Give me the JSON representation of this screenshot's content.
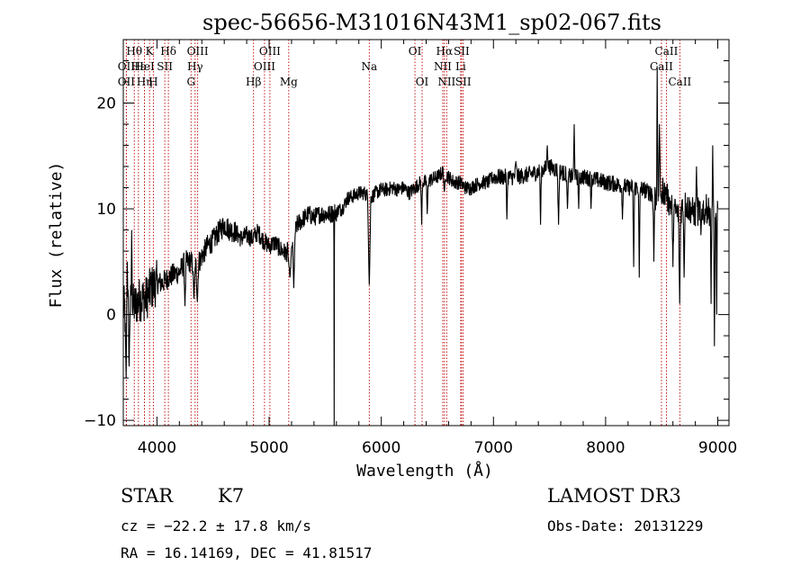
{
  "chart_data": {
    "type": "line",
    "title": "spec-56656-M31016N43M1_sp02-067.fits",
    "xlabel": "Wavelength (Å)",
    "ylabel": "Flux (relative)",
    "xlim": [
      3700,
      9100
    ],
    "ylim": [
      -10.5,
      26
    ],
    "xticks": [
      4000,
      5000,
      6000,
      7000,
      8000,
      9000
    ],
    "yticks": [
      -10,
      0,
      10,
      20
    ],
    "tick_labels_x": [
      "4000",
      "5000",
      "6000",
      "7000",
      "8000",
      "9000"
    ],
    "tick_labels_y": [
      "−10",
      "0",
      "10",
      "20"
    ],
    "series": [
      {
        "name": "flux",
        "anchors": [
          [
            3700,
            0.5
          ],
          [
            3750,
            1.0
          ],
          [
            3800,
            0.8
          ],
          [
            3850,
            1.5
          ],
          [
            3900,
            1.5
          ],
          [
            3950,
            2.5
          ],
          [
            4000,
            3.0
          ],
          [
            4050,
            3.0
          ],
          [
            4100,
            3.5
          ],
          [
            4150,
            3.8
          ],
          [
            4200,
            4.0
          ],
          [
            4250,
            5.0
          ],
          [
            4300,
            5.0
          ],
          [
            4350,
            4.5
          ],
          [
            4400,
            5.5
          ],
          [
            4450,
            6.5
          ],
          [
            4500,
            7.0
          ],
          [
            4550,
            7.8
          ],
          [
            4600,
            8.5
          ],
          [
            4650,
            8.0
          ],
          [
            4700,
            7.8
          ],
          [
            4750,
            7.2
          ],
          [
            4800,
            7.5
          ],
          [
            4850,
            7.2
          ],
          [
            4900,
            7.8
          ],
          [
            4950,
            7.0
          ],
          [
            5000,
            6.5
          ],
          [
            5050,
            6.8
          ],
          [
            5100,
            6.2
          ],
          [
            5150,
            5.8
          ],
          [
            5200,
            6.5
          ],
          [
            5250,
            8.5
          ],
          [
            5300,
            9.0
          ],
          [
            5350,
            9.5
          ],
          [
            5400,
            9.2
          ],
          [
            5450,
            9.5
          ],
          [
            5500,
            9.5
          ],
          [
            5550,
            9.5
          ],
          [
            5600,
            9.8
          ],
          [
            5650,
            10.0
          ],
          [
            5700,
            11.0
          ],
          [
            5750,
            11.2
          ],
          [
            5800,
            11.5
          ],
          [
            5850,
            11.5
          ],
          [
            5900,
            11.0
          ],
          [
            5950,
            11.5
          ],
          [
            6000,
            11.8
          ],
          [
            6050,
            11.8
          ],
          [
            6100,
            12.0
          ],
          [
            6150,
            11.8
          ],
          [
            6200,
            12.0
          ],
          [
            6250,
            11.5
          ],
          [
            6300,
            12.0
          ],
          [
            6350,
            12.5
          ],
          [
            6400,
            12.5
          ],
          [
            6450,
            12.8
          ],
          [
            6500,
            13.0
          ],
          [
            6550,
            13.5
          ],
          [
            6600,
            13.0
          ],
          [
            6650,
            12.5
          ],
          [
            6700,
            12.5
          ],
          [
            6750,
            12.0
          ],
          [
            6800,
            12.0
          ],
          [
            6850,
            12.3
          ],
          [
            6900,
            12.5
          ],
          [
            6950,
            12.5
          ],
          [
            7000,
            13.0
          ],
          [
            7100,
            13.0
          ],
          [
            7200,
            13.0
          ],
          [
            7300,
            13.2
          ],
          [
            7400,
            13.5
          ],
          [
            7500,
            14.0
          ],
          [
            7600,
            13.5
          ],
          [
            7700,
            13.0
          ],
          [
            7800,
            13.0
          ],
          [
            7900,
            12.8
          ],
          [
            8000,
            12.5
          ],
          [
            8100,
            12.3
          ],
          [
            8200,
            12.0
          ],
          [
            8300,
            12.0
          ],
          [
            8400,
            11.5
          ],
          [
            8450,
            11.0
          ],
          [
            8500,
            12.0
          ],
          [
            8550,
            11.0
          ],
          [
            8600,
            10.0
          ],
          [
            8650,
            9.5
          ],
          [
            8700,
            10.5
          ],
          [
            8750,
            10.0
          ],
          [
            8800,
            9.5
          ],
          [
            8850,
            10.0
          ],
          [
            8900,
            10.0
          ],
          [
            8950,
            9.5
          ],
          [
            9000,
            9.5
          ]
        ],
        "features": [
          [
            3725,
            -6.0,
            12
          ],
          [
            3735,
            5.0,
            8
          ],
          [
            3752,
            -5.3,
            8
          ],
          [
            3775,
            8.0,
            6
          ],
          [
            4250,
            0.8,
            10
          ],
          [
            4330,
            1.5,
            12
          ],
          [
            4360,
            1.2,
            12
          ],
          [
            5185,
            3.5,
            20
          ],
          [
            5220,
            2.5,
            12
          ],
          [
            5580,
            -10.5,
            3
          ],
          [
            5600,
            8.8,
            3
          ],
          [
            5893,
            2.5,
            14
          ],
          [
            6360,
            8.5,
            8
          ],
          [
            6410,
            9.5,
            8
          ],
          [
            6563,
            11.5,
            10
          ],
          [
            7120,
            9.0,
            8
          ],
          [
            7200,
            14.5,
            12
          ],
          [
            7420,
            8.5,
            8
          ],
          [
            7480,
            16.0,
            10
          ],
          [
            7580,
            8.5,
            10
          ],
          [
            7660,
            10.0,
            10
          ],
          [
            7720,
            18.0,
            8
          ],
          [
            7760,
            10.0,
            8
          ],
          [
            7870,
            10.0,
            8
          ],
          [
            8150,
            9.0,
            8
          ],
          [
            8250,
            4.5,
            8
          ],
          [
            8300,
            3.5,
            8
          ],
          [
            8430,
            5.0,
            8
          ],
          [
            8460,
            23.5,
            6
          ],
          [
            8480,
            18.0,
            8
          ],
          [
            8500,
            10.5,
            6
          ],
          [
            8540,
            12.0,
            8
          ],
          [
            8600,
            4.5,
            8
          ],
          [
            8660,
            1.0,
            10
          ],
          [
            8700,
            3.5,
            8
          ],
          [
            8810,
            14.0,
            8
          ],
          [
            8850,
            7.5,
            8
          ],
          [
            8880,
            8.5,
            6
          ],
          [
            8940,
            1.0,
            6
          ],
          [
            8955,
            16.0,
            6
          ],
          [
            8970,
            -3.0,
            8
          ],
          [
            8990,
            0.0,
            6
          ]
        ]
      }
    ],
    "line_markers": [
      {
        "label": "Hθ",
        "wavelength": 3798,
        "row": 1
      },
      {
        "label": "OII",
        "wavelength": 3727,
        "row": 2
      },
      {
        "label": "OII",
        "wavelength": 3727,
        "row": 3
      },
      {
        "label": "Hε",
        "wavelength": 3835,
        "row": 2
      },
      {
        "label": "Hη",
        "wavelength": 3889,
        "row": 3
      },
      {
        "label": "K",
        "wavelength": 3934,
        "row": 1
      },
      {
        "label": "HeI",
        "wavelength": 3889,
        "row": 2
      },
      {
        "label": "H",
        "wavelength": 3968,
        "row": 3
      },
      {
        "label": "SII",
        "wavelength": 4070,
        "row": 2
      },
      {
        "label": "Hδ",
        "wavelength": 4102,
        "row": 1
      },
      {
        "label": "OIII",
        "wavelength": 4363,
        "row": 1
      },
      {
        "label": "Hγ",
        "wavelength": 4340,
        "row": 2
      },
      {
        "label": "G",
        "wavelength": 4304,
        "row": 3
      },
      {
        "label": "Hβ",
        "wavelength": 4861,
        "row": 3
      },
      {
        "label": "OIII",
        "wavelength": 5007,
        "row": 1
      },
      {
        "label": "OIII",
        "wavelength": 4959,
        "row": 2
      },
      {
        "label": "Mg",
        "wavelength": 5175,
        "row": 3
      },
      {
        "label": "Na",
        "wavelength": 5893,
        "row": 2
      },
      {
        "label": "OI",
        "wavelength": 6300,
        "row": 1
      },
      {
        "label": "OI",
        "wavelength": 6364,
        "row": 3
      },
      {
        "label": "Hα",
        "wavelength": 6563,
        "row": 1
      },
      {
        "label": "SII",
        "wavelength": 6716,
        "row": 1
      },
      {
        "label": "NII",
        "wavelength": 6548,
        "row": 2
      },
      {
        "label": "NII",
        "wavelength": 6583,
        "row": 3
      },
      {
        "label": "SII",
        "wavelength": 6731,
        "row": 3
      },
      {
        "label": "Li",
        "wavelength": 6708,
        "row": 2
      },
      {
        "label": "CaII",
        "wavelength": 8542,
        "row": 1
      },
      {
        "label": "CaII",
        "wavelength": 8498,
        "row": 2
      },
      {
        "label": "CaII",
        "wavelength": 8662,
        "row": 3
      }
    ],
    "marker_color": "#c00000",
    "line_color": "#000000"
  },
  "info": {
    "class": "STAR",
    "subclass": "K7",
    "survey": "LAMOST DR3",
    "cz": "cz = −22.2 ± 17.8 km/s",
    "obs_date": "Obs-Date: 20131229",
    "coords": "RA =  16.14169, DEC =  41.81517"
  }
}
